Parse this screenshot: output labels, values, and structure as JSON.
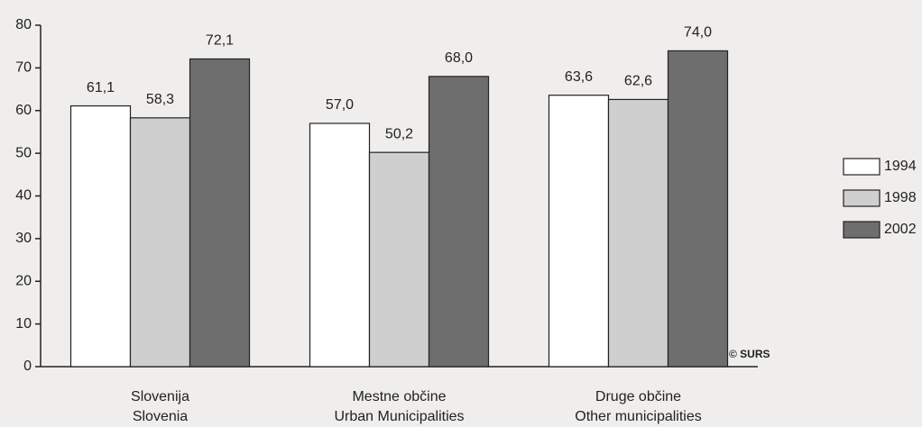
{
  "chart_data": {
    "type": "bar",
    "categories": [
      [
        "Slovenija",
        "Slovenia"
      ],
      [
        "Mestne občine",
        "Urban Municipalities"
      ],
      [
        "Druge občine",
        "Other municipalities"
      ]
    ],
    "series": [
      {
        "name": "1994",
        "color": "#ffffff",
        "values": [
          61.1,
          57.0,
          63.6
        ],
        "value_labels": [
          "61,1",
          "57,0",
          "63,6"
        ]
      },
      {
        "name": "1998",
        "color": "#cfcfcf",
        "values": [
          58.3,
          50.2,
          62.6
        ],
        "value_labels": [
          "58,3",
          "50,2",
          "62,6"
        ]
      },
      {
        "name": "2002",
        "color": "#6e6e6e",
        "values": [
          72.1,
          68.0,
          74.0
        ],
        "value_labels": [
          "72,1",
          "68,0",
          "74,0"
        ]
      }
    ],
    "ylim": [
      0,
      80
    ],
    "yticks": [
      0,
      10,
      20,
      30,
      40,
      50,
      60,
      70,
      80
    ],
    "annotation": "© SURS",
    "legend": "right"
  }
}
